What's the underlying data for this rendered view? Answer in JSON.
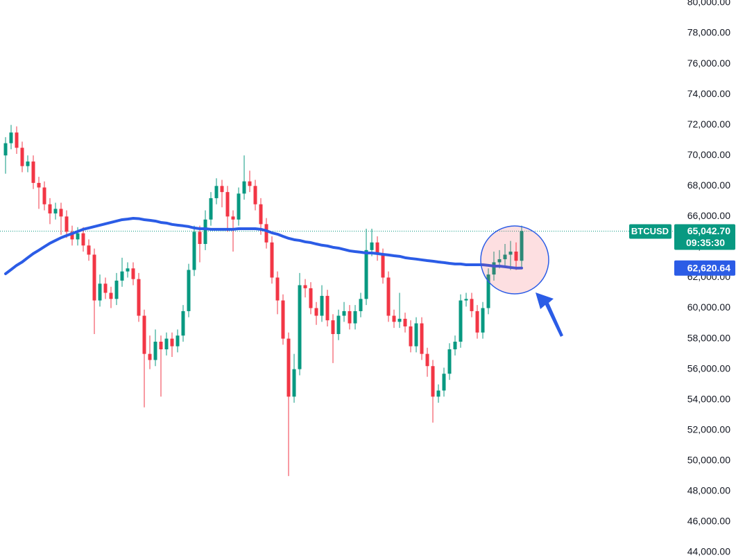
{
  "chart_data": {
    "type": "candlestick",
    "up_color": "#089981",
    "down_color": "#f23645",
    "ylim": [
      43500,
      80180
    ],
    "yticks": [
      {
        "value": 80000,
        "label": "80,000.00"
      },
      {
        "value": 78000,
        "label": "78,000.00"
      },
      {
        "value": 76000,
        "label": "76,000.00"
      },
      {
        "value": 74000,
        "label": "74,000.00"
      },
      {
        "value": 72000,
        "label": "72,000.00"
      },
      {
        "value": 70000,
        "label": "70,000.00"
      },
      {
        "value": 68000,
        "label": "68,000.00"
      },
      {
        "value": 66000,
        "label": "66,000.00"
      },
      {
        "value": 64000,
        "label": "64,000.00"
      },
      {
        "value": 62000,
        "label": "62,000.00"
      },
      {
        "value": 60000,
        "label": "60,000.00"
      },
      {
        "value": 58000,
        "label": "58,000.00"
      },
      {
        "value": 56000,
        "label": "56,000.00"
      },
      {
        "value": 54000,
        "label": "54,000.00"
      },
      {
        "value": 52000,
        "label": "52,000.00"
      },
      {
        "value": 50000,
        "label": "50,000.00"
      },
      {
        "value": 48000,
        "label": "48,000.00"
      },
      {
        "value": 46000,
        "label": "46,000.00"
      },
      {
        "value": 44000,
        "label": "44,000.00"
      }
    ],
    "open": [
      70000,
      70800,
      71500,
      70500,
      69300,
      69600,
      68200,
      67900,
      66800,
      66200,
      66500,
      66000,
      65000,
      64500,
      64900,
      64100,
      63500,
      60500,
      61600,
      61000,
      60600,
      61800,
      62400,
      62600,
      61900,
      59500,
      57000,
      56600,
      57800,
      57300,
      58000,
      57500,
      58200,
      59800,
      62500,
      65000,
      64200,
      65800,
      67200,
      68000,
      67600,
      66000,
      65800,
      67500,
      68300,
      68000,
      66800,
      65500,
      64300,
      62000,
      60500,
      58000,
      54200,
      56000,
      61500,
      61300,
      60000,
      59500,
      60800,
      59200,
      58300,
      59500,
      59800,
      59000,
      59800,
      60600,
      63800,
      64300,
      63500,
      62000,
      59500,
      59100,
      59300,
      58800,
      57500,
      59000,
      57000,
      56200,
      54200,
      54600,
      55700,
      57300,
      57800,
      60500,
      60600,
      59800,
      58400,
      60000,
      62200,
      63000,
      63200,
      63500,
      63700,
      63100
    ],
    "high": [
      71200,
      72000,
      71900,
      70900,
      70000,
      70000,
      68600,
      68300,
      67200,
      66900,
      66900,
      66400,
      65400,
      65300,
      65300,
      64500,
      63900,
      62200,
      62000,
      61400,
      62300,
      63300,
      63000,
      63000,
      62300,
      59900,
      58200,
      58600,
      58200,
      58400,
      58400,
      58600,
      60200,
      62900,
      65400,
      65400,
      66400,
      67600,
      68500,
      68400,
      68000,
      66400,
      67900,
      70000,
      69000,
      68400,
      67200,
      65900,
      64700,
      62400,
      60900,
      58400,
      57000,
      62300,
      61900,
      61700,
      60400,
      61500,
      61200,
      59600,
      59900,
      60400,
      60200,
      60200,
      61000,
      65200,
      65200,
      64700,
      63900,
      62400,
      59900,
      61000,
      59700,
      59200,
      59400,
      59400,
      57400,
      56600,
      55000,
      56100,
      57700,
      58200,
      60900,
      61000,
      61000,
      60200,
      60400,
      62600,
      63700,
      63800,
      64200,
      64400,
      64300,
      65400
    ],
    "low": [
      68800,
      70400,
      70100,
      68900,
      68900,
      67800,
      66500,
      66400,
      65500,
      65800,
      64800,
      64600,
      64100,
      64100,
      63700,
      63100,
      58300,
      60100,
      60600,
      60000,
      60200,
      61400,
      62000,
      61500,
      59100,
      53500,
      56000,
      56200,
      54200,
      56900,
      56800,
      57100,
      57800,
      59400,
      62100,
      63000,
      63800,
      65400,
      66800,
      66600,
      65000,
      63700,
      65400,
      67100,
      67600,
      66400,
      64800,
      63900,
      61600,
      59600,
      57600,
      49000,
      53800,
      55600,
      60700,
      59600,
      58900,
      59100,
      58800,
      56400,
      57900,
      59100,
      58600,
      58600,
      59400,
      60200,
      63400,
      63100,
      61600,
      59100,
      58700,
      58700,
      58400,
      57100,
      57100,
      56600,
      55500,
      52500,
      53800,
      54200,
      55300,
      56900,
      57400,
      60100,
      59400,
      58000,
      58000,
      59600,
      61800,
      62600,
      62800,
      62500,
      62500,
      62600
    ],
    "close": [
      70800,
      71500,
      70500,
      69300,
      69600,
      68200,
      67900,
      66800,
      66200,
      66500,
      66000,
      65000,
      64500,
      64900,
      64100,
      63500,
      60500,
      61600,
      61000,
      60600,
      61800,
      62400,
      62600,
      61900,
      59500,
      57000,
      56600,
      57800,
      57300,
      58000,
      57500,
      58200,
      59800,
      62500,
      65000,
      64200,
      65800,
      67200,
      68000,
      67600,
      66000,
      65800,
      67500,
      68300,
      68000,
      66800,
      65500,
      64300,
      62000,
      60500,
      58000,
      54200,
      56000,
      61500,
      61300,
      60000,
      59500,
      60800,
      59200,
      58300,
      59500,
      59800,
      59000,
      59800,
      60600,
      63800,
      64300,
      63500,
      62000,
      59500,
      59100,
      59300,
      58800,
      57500,
      59000,
      57000,
      56200,
      54200,
      54600,
      55700,
      57300,
      57800,
      60500,
      60600,
      59800,
      58400,
      60000,
      62200,
      63000,
      63200,
      63500,
      63700,
      63100,
      65042.7
    ],
    "ma": {
      "color": "#2b5ce6",
      "values": [
        62250,
        62520,
        62800,
        63020,
        63300,
        63570,
        63790,
        64020,
        64250,
        64430,
        64610,
        64750,
        64880,
        65020,
        65160,
        65250,
        65340,
        65430,
        65520,
        65610,
        65700,
        65790,
        65830,
        65880,
        65860,
        65790,
        65750,
        65700,
        65610,
        65570,
        65480,
        65430,
        65390,
        65340,
        65250,
        65200,
        65200,
        65160,
        65160,
        65160,
        65160,
        65160,
        65200,
        65200,
        65200,
        65200,
        65160,
        65070,
        64930,
        64840,
        64700,
        64570,
        64480,
        64430,
        64340,
        64290,
        64200,
        64120,
        64070,
        63980,
        63930,
        63840,
        63750,
        63700,
        63660,
        63610,
        63610,
        63570,
        63520,
        63480,
        63430,
        63390,
        63300,
        63250,
        63210,
        63160,
        63110,
        63070,
        63020,
        62980,
        62930,
        62890,
        62890,
        62840,
        62840,
        62840,
        62840,
        62800,
        62750,
        62750,
        62710,
        62660,
        62620,
        62620.64
      ]
    },
    "price_line": {
      "symbol": "BTCUSD",
      "value": 65042.7,
      "label": "65,042.70",
      "countdown": "09:35:30",
      "color": "#089981"
    },
    "ma_tag": {
      "value": 62620.64,
      "label": "62,620.64"
    }
  }
}
